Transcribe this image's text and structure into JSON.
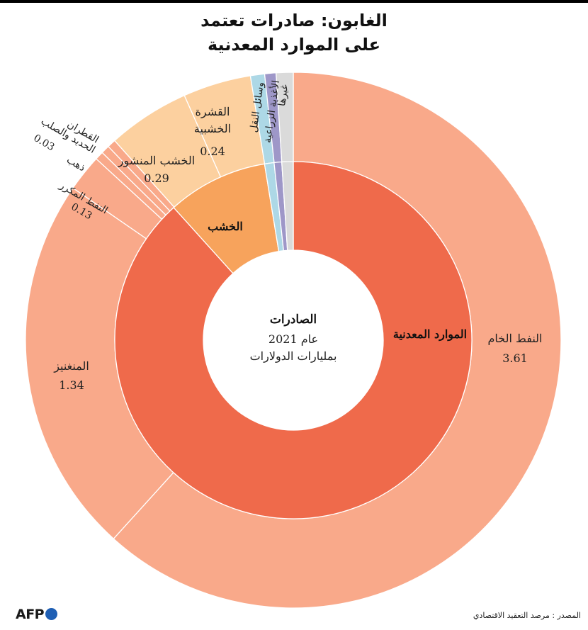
{
  "title": {
    "line1": "الغابون: صادرات تعتمد",
    "line2": "على الموارد المعدنية"
  },
  "source": "المصدر : مرصد التعقيد الاقتصادي",
  "logo": "AFP",
  "chart_data": {
    "type": "pie",
    "unit": "بمليارات الدولارات",
    "center": {
      "title": "الصادرات",
      "year": "عام 2021",
      "unit": "بمليارات الدولارات"
    },
    "inner": [
      {
        "name": "الموارد المعدنية",
        "value": 5.14,
        "color": "#ef6a4b",
        "label": "الموارد المعدنية"
      },
      {
        "name": "الخشب",
        "value": 0.53,
        "color": "#f7a35c",
        "label": "الخشب"
      },
      {
        "name": "وسائل النقل",
        "value": 0.05,
        "color": "#add8e6",
        "label": ""
      },
      {
        "name": "الأغذية الزراعية",
        "value": 0.04,
        "color": "#9e97c8",
        "label": ""
      },
      {
        "name": "غيرها",
        "value": 0.06,
        "color": "#dadada",
        "label": ""
      }
    ],
    "outer": [
      {
        "name": "النفط الخام",
        "value": 3.61,
        "value_label": "3.61",
        "color": "#f9a98a"
      },
      {
        "name": "المنغنيز",
        "value": 1.34,
        "value_label": "1.34",
        "color": "#f9a98a"
      },
      {
        "name": "النفط المكرر",
        "value": 0.13,
        "value_label": "0.13",
        "color": "#f9a98a"
      },
      {
        "name": "ذهب",
        "value": 0.03,
        "value_label": "",
        "color": "#f9a98a"
      },
      {
        "name": "الحديد والصلب",
        "value": 0.03,
        "value_label": "0.03",
        "color": "#f9a98a"
      },
      {
        "name": "القطران",
        "value": 0.03,
        "value_label": "",
        "color": "#f9a98a"
      },
      {
        "name": "الخشب المنشور",
        "value": 0.29,
        "value_label": "0.29",
        "color": "#fcd09f"
      },
      {
        "name": "القشرة الخشبية",
        "value": 0.24,
        "value_label": "0.24",
        "color": "#fcd09f"
      },
      {
        "name": "وسائل النقل",
        "value": 0.05,
        "value_label": "",
        "color": "#add8e6"
      },
      {
        "name": "الأغذية الزراعية",
        "value": 0.04,
        "value_label": "",
        "color": "#9e97c8"
      },
      {
        "name": "غيرها",
        "value": 0.06,
        "value_label": "",
        "color": "#dadada"
      }
    ]
  }
}
